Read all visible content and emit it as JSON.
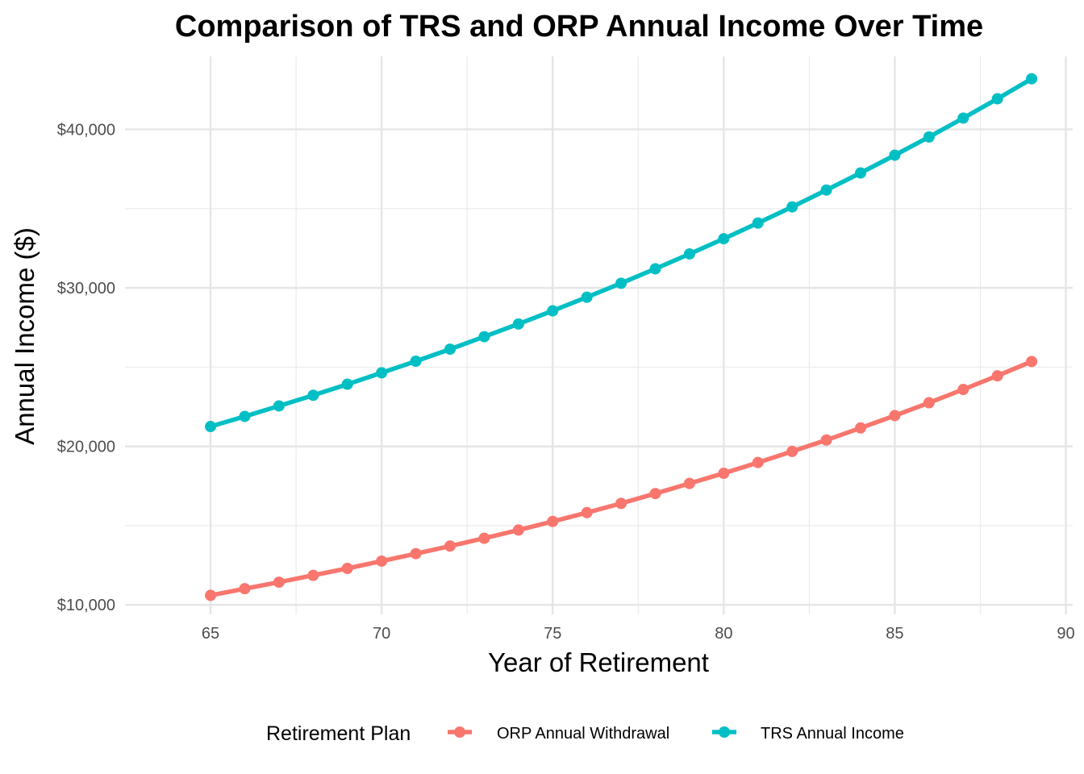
{
  "chart_data": {
    "type": "line",
    "title": "Comparison of TRS and ORP Annual Income Over Time",
    "xlabel": "Year of Retirement",
    "ylabel": "Annual Income ($)",
    "xlim": [
      62.5,
      90.2
    ],
    "ylim": [
      9400,
      44600
    ],
    "x_ticks": [
      65,
      70,
      75,
      80,
      85,
      90
    ],
    "x_minor_ticks": [
      67.5,
      72.5,
      77.5,
      82.5,
      87.5
    ],
    "y_ticks": [
      10000,
      20000,
      30000,
      40000
    ],
    "y_tick_labels": [
      "$10,000",
      "$20,000",
      "$30,000",
      "$40,000"
    ],
    "y_minor_ticks": [
      15000,
      25000,
      35000
    ],
    "grid": true,
    "legend": {
      "title": "Retirement Plan",
      "position": "bottom"
    },
    "x": [
      65,
      66,
      67,
      68,
      69,
      70,
      71,
      72,
      73,
      74,
      75,
      76,
      77,
      78,
      79,
      80,
      81,
      82,
      83,
      84,
      85,
      86,
      87,
      88,
      89
    ],
    "series": [
      {
        "name": "ORP Annual Withdrawal",
        "color": "#F8766D",
        "values": [
          10600,
          11020,
          11430,
          11860,
          12300,
          12760,
          13230,
          13710,
          14200,
          14720,
          15260,
          15820,
          16400,
          17020,
          17660,
          18300,
          18980,
          19680,
          20400,
          21160,
          21940,
          22750,
          23590,
          24450,
          25350
        ]
      },
      {
        "name": "TRS Annual Income",
        "color": "#00BFC4",
        "values": [
          21250,
          21890,
          22550,
          23220,
          23920,
          24640,
          25370,
          26130,
          26920,
          27720,
          28550,
          29410,
          30290,
          31200,
          32140,
          33100,
          34090,
          35110,
          36170,
          37250,
          38370,
          39520,
          40710,
          41930,
          43190
        ]
      }
    ]
  }
}
